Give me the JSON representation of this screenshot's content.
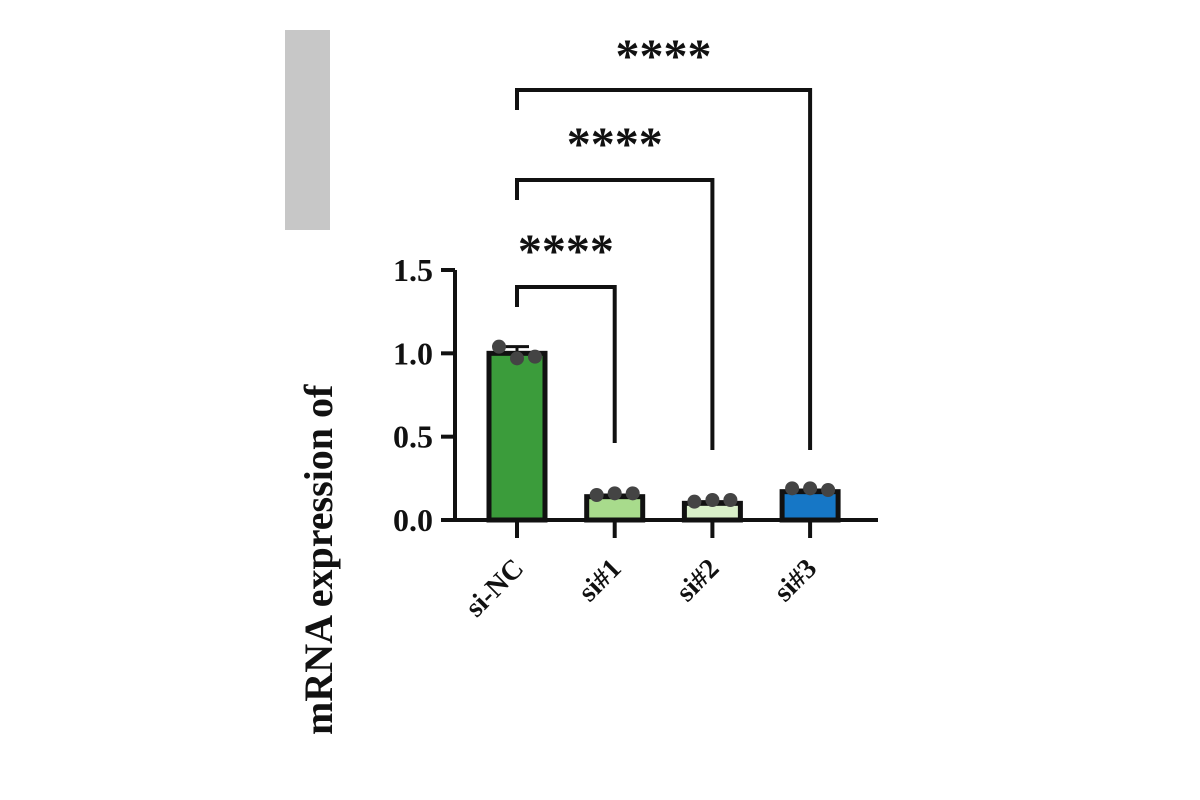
{
  "chart_data": {
    "type": "bar",
    "y_label": "mRNA expression of",
    "categories": [
      "si-NC",
      "si#1",
      "si#2",
      "si#3"
    ],
    "values": [
      1.0,
      0.14,
      0.1,
      0.17
    ],
    "errors": [
      0.04,
      0.01,
      0.01,
      0.01
    ],
    "points": [
      [
        1.04,
        0.97,
        0.98
      ],
      [
        0.15,
        0.16,
        0.16
      ],
      [
        0.11,
        0.12,
        0.12
      ],
      [
        0.19,
        0.19,
        0.18
      ]
    ],
    "colors": [
      "#3b9c3b",
      "#a8db8c",
      "#d9f0c9",
      "#1677c6"
    ],
    "ylim": [
      0,
      1.5
    ],
    "yticks": [
      {
        "value": 0,
        "label": "0.0"
      },
      {
        "value": 0.5,
        "label": "0.5"
      },
      {
        "value": 1,
        "label": "1.0"
      },
      {
        "value": 1.5,
        "label": "1.5"
      }
    ],
    "annotations": [
      "****",
      "****",
      "****"
    ]
  }
}
